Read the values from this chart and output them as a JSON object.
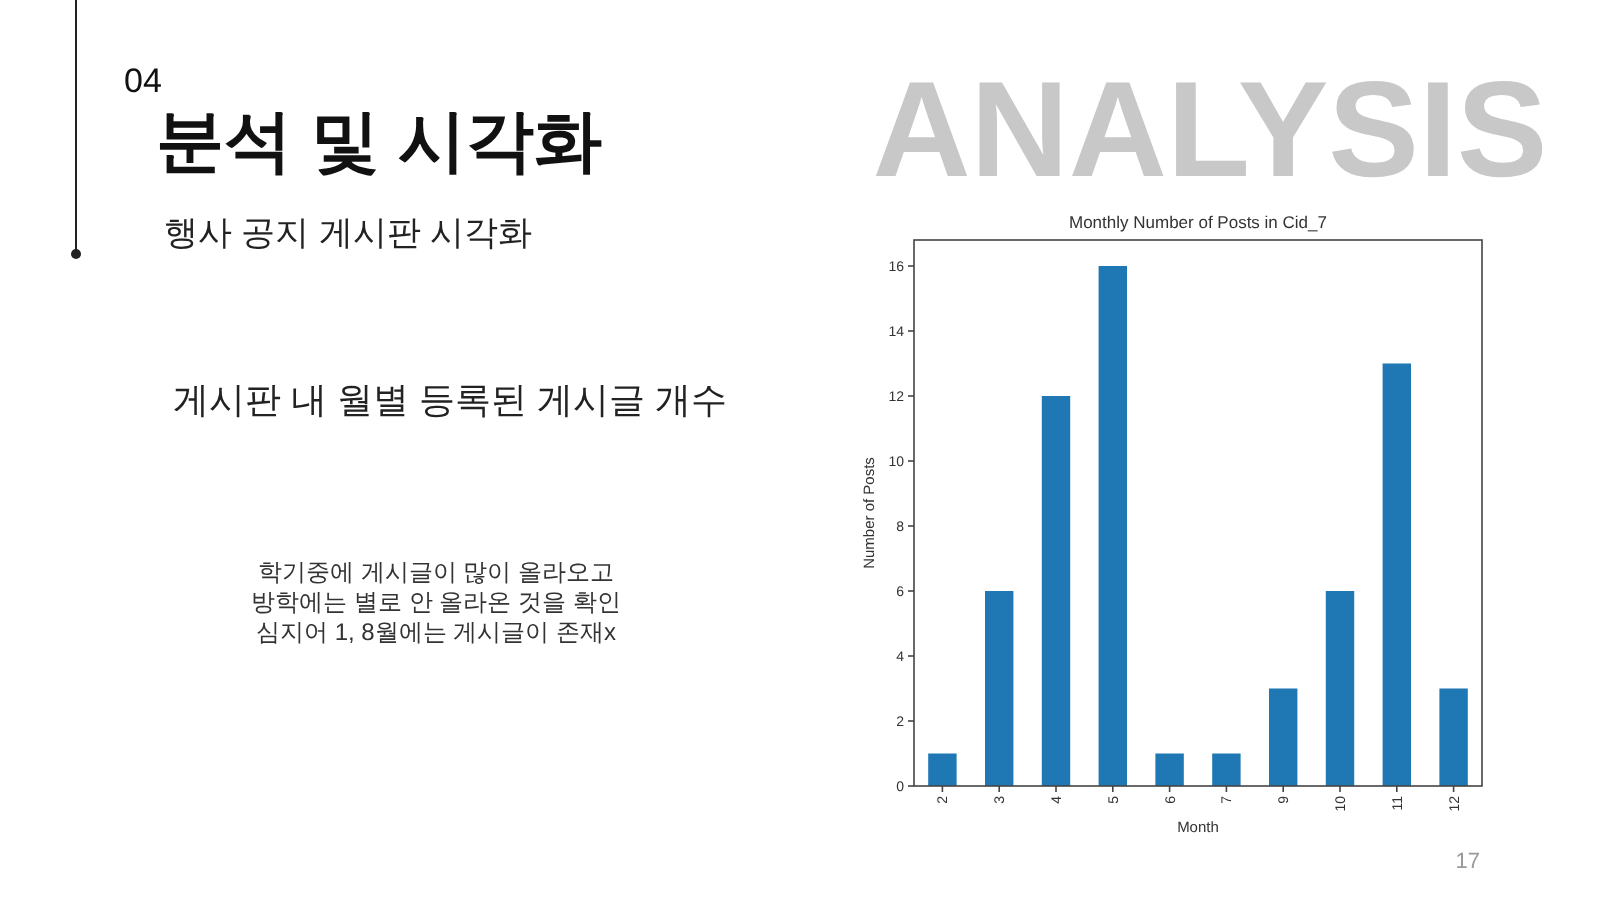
{
  "chart_data": {
    "type": "bar",
    "title": "Monthly Number of Posts in Cid_7",
    "xlabel": "Month",
    "ylabel": "Number of Posts",
    "categories": [
      "2",
      "3",
      "4",
      "5",
      "6",
      "7",
      "9",
      "10",
      "11",
      "12"
    ],
    "values": [
      1,
      6,
      12,
      16,
      1,
      1,
      3,
      6,
      13,
      3
    ],
    "color": "#1f77b4",
    "ylim": [
      0,
      16.8
    ],
    "yticks": [
      0,
      2,
      4,
      6,
      8,
      10,
      12,
      14,
      16
    ],
    "grid": false,
    "annotations": [
      "04",
      "분석 및 시각화",
      "행사 공지 게시판 시각화",
      "게시판 내 월별 등록된 게시글 개수",
      "학기중에 게시글이 많이 올라오고\n방학에는 별로 안 올라온 것을 확인\n심지어 1, 8월에는  게시글이 존재x",
      "ANALYSIS",
      "17"
    ]
  }
}
